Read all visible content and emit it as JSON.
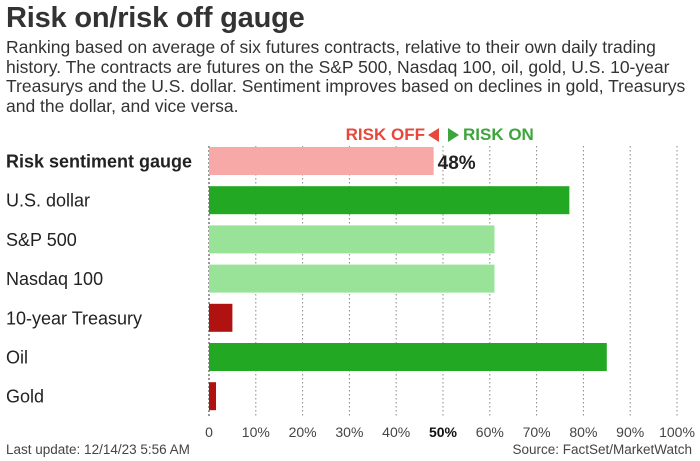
{
  "header": {
    "title": "Risk on/risk off gauge",
    "subtitle": "Ranking based on average of six futures contracts, relative to their own daily trading history. The contracts are futures on the S&P 500, Nasdaq 100, oil, gold, U.S. 10-year Treasurys and the U.S. dollar. Sentiment improves based on declines in gold, Treasurys and the dollar, and vice versa."
  },
  "legend": {
    "risk_off": "RISK OFF",
    "risk_on": "RISK ON",
    "risk_off_color": "#e8473b",
    "risk_on_color": "#3da53b"
  },
  "chart_data": {
    "type": "bar",
    "orientation": "horizontal",
    "categories": [
      "Risk sentiment gauge",
      "U.S. dollar",
      "S&P 500",
      "Nasdaq 100",
      "10-year Treasury",
      "Oil",
      "Gold"
    ],
    "values": [
      48,
      77,
      61,
      61,
      5,
      85,
      1.5
    ],
    "colors": [
      "#f7a9a8",
      "#22a822",
      "#98e398",
      "#98e398",
      "#b01212",
      "#22a822",
      "#b01212"
    ],
    "bold_categories": [
      "Risk sentiment gauge"
    ],
    "value_labels": [
      "48%",
      "",
      "",
      "",
      "",
      "",
      ""
    ],
    "xlim": [
      0,
      100
    ],
    "xticks": [
      0,
      10,
      20,
      30,
      40,
      50,
      60,
      70,
      80,
      90,
      100
    ],
    "xtick_labels": [
      "0",
      "10%",
      "20%",
      "30%",
      "40%",
      "50%",
      "60%",
      "70%",
      "80%",
      "90%",
      "100%"
    ],
    "bold_tick": "50%",
    "grid": "vertical dotted",
    "title": "",
    "xlabel": "",
    "ylabel": ""
  },
  "footer": {
    "last_update": "Last update: 12/14/23 5:56 AM",
    "source": "Source: FactSet/MarketWatch"
  }
}
